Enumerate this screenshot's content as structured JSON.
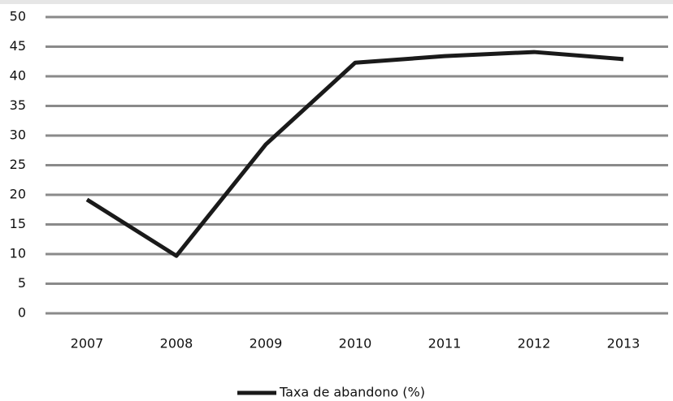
{
  "chart_data": {
    "type": "line",
    "categories": [
      "2007",
      "2008",
      "2009",
      "2010",
      "2011",
      "2012",
      "2013"
    ],
    "series": [
      {
        "name": "Taxa de abandono (%)",
        "color": "#1a1a1a",
        "values": [
          19.2,
          9.7,
          28.5,
          42.3,
          43.4,
          44.1,
          42.9
        ]
      }
    ],
    "ylim": [
      0,
      50
    ],
    "yticks": [
      0,
      5,
      10,
      15,
      20,
      25,
      30,
      35,
      40,
      45,
      50
    ],
    "grid": true,
    "legend": "bottom"
  }
}
